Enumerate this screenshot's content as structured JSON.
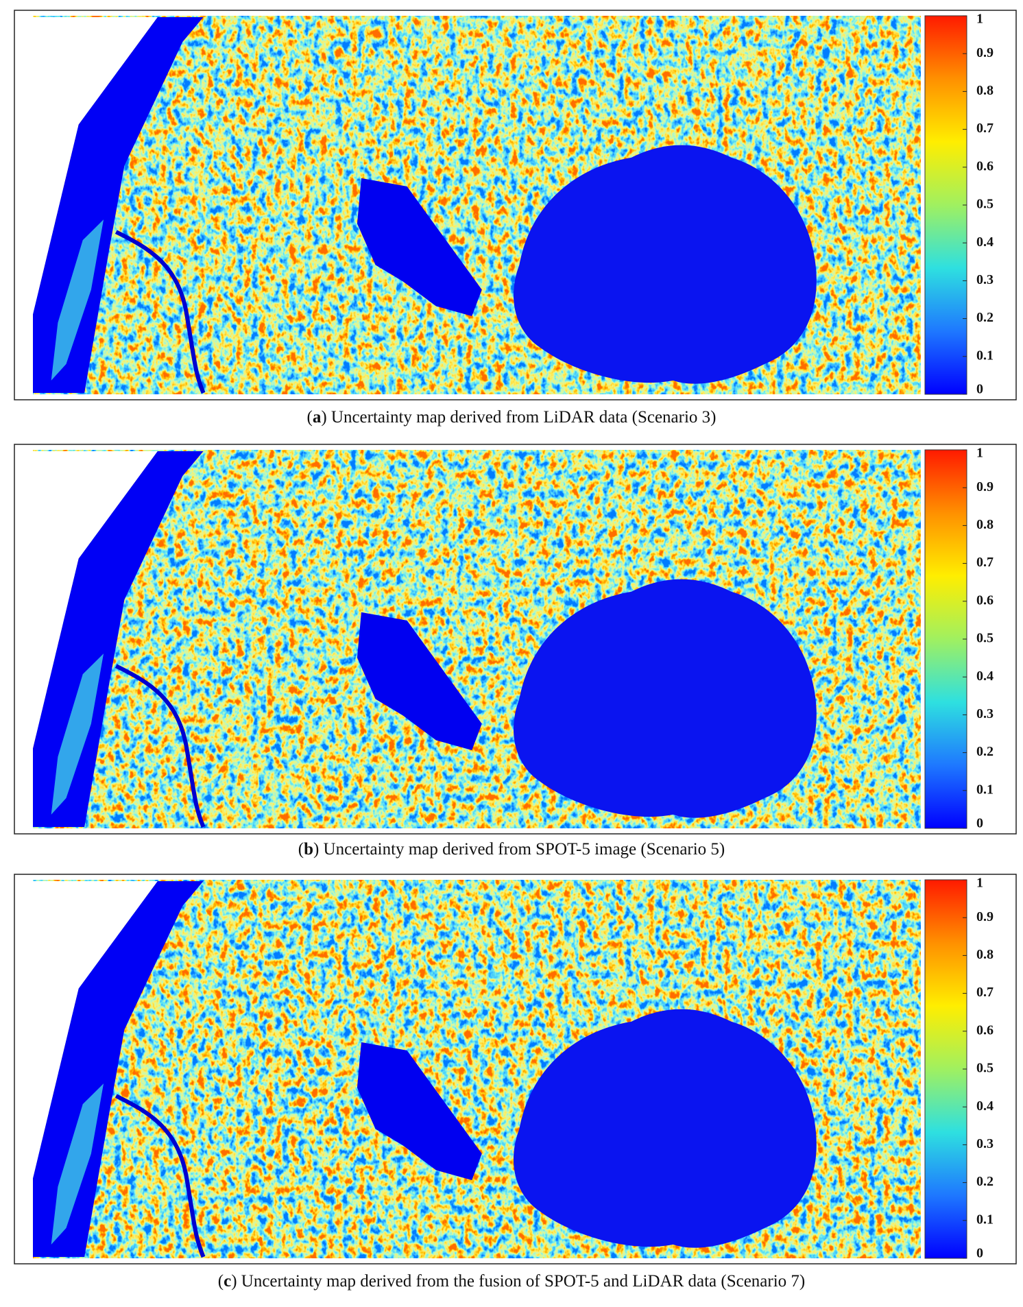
{
  "panels": [
    {
      "caption": {
        "open": "(",
        "label": "a",
        "rest": ") Uncertainty map derived from LiDAR data (Scenario 3)"
      },
      "colorbar": {
        "lim": [
          0,
          1
        ],
        "ticks": [
          0,
          0.1,
          0.2,
          0.3,
          0.4,
          0.5,
          0.6,
          0.7,
          0.8,
          0.9,
          1
        ],
        "colormap": [
          "#0000ff",
          "#1e78ff",
          "#2ee0e0",
          "#a0f060",
          "#ffee00",
          "#ff9000",
          "#ff1a00"
        ]
      }
    },
    {
      "caption": {
        "open": "(",
        "label": "b",
        "rest": ") Uncertainty map derived from SPOT-5 image (Scenario 5)"
      },
      "colorbar": {
        "lim": [
          0,
          1
        ],
        "ticks": [
          0,
          0.1,
          0.2,
          0.3,
          0.4,
          0.5,
          0.6,
          0.7,
          0.8,
          0.9,
          1
        ],
        "colormap": [
          "#0000ff",
          "#1e78ff",
          "#2ee0e0",
          "#a0f060",
          "#ffee00",
          "#ff9000",
          "#ff1a00"
        ]
      }
    },
    {
      "caption": {
        "open": "(",
        "label": "c",
        "rest": ") Uncertainty map derived from the fusion of SPOT-5 and LiDAR data (Scenario 7)"
      },
      "colorbar": {
        "lim": [
          0,
          1
        ],
        "ticks": [
          0,
          0.1,
          0.2,
          0.3,
          0.4,
          0.5,
          0.6,
          0.7,
          0.8,
          0.9,
          1
        ],
        "colormap": [
          "#0000ff",
          "#1e78ff",
          "#2ee0e0",
          "#a0f060",
          "#ffee00",
          "#ff9000",
          "#ff1a00"
        ]
      }
    }
  ]
}
